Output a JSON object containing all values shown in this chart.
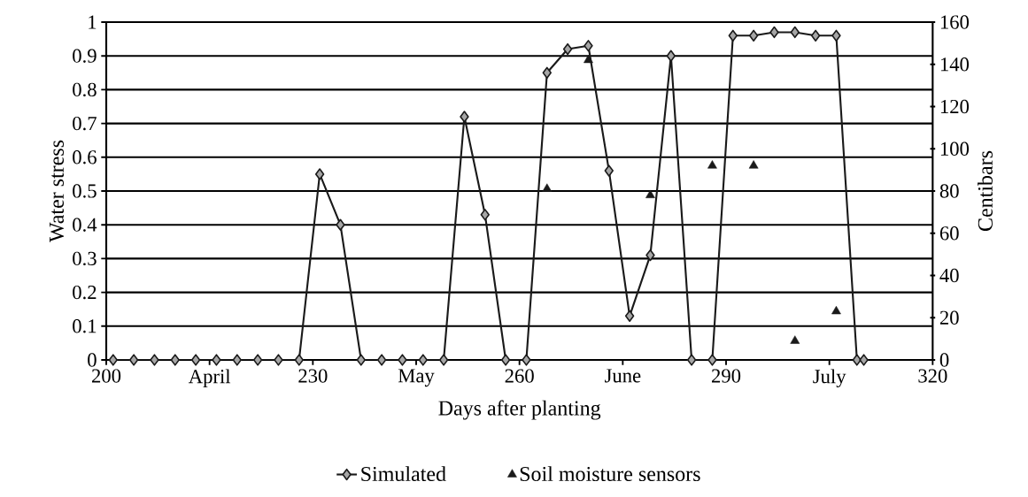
{
  "chart_data": {
    "type": "line",
    "xlabel": "Days after planting",
    "ylabel": "Water stress",
    "y2label": "Centibars",
    "xlim": [
      200,
      320
    ],
    "xticks": [
      200,
      {
        "value": 215,
        "label": "April"
      },
      230,
      {
        "value": 245,
        "label": "May"
      },
      260,
      {
        "value": 275,
        "label": "June"
      },
      290,
      {
        "value": 305,
        "label": "July"
      },
      320
    ],
    "ylim": [
      0,
      1
    ],
    "yticks": [
      0,
      0.1,
      0.2,
      0.3,
      0.4,
      0.5,
      0.6,
      0.7,
      0.8,
      0.9,
      1
    ],
    "y2lim": [
      0,
      160
    ],
    "y2ticks": [
      0,
      20,
      40,
      60,
      80,
      100,
      120,
      140,
      160
    ],
    "grid": "y",
    "legend": "bottom",
    "series": [
      {
        "name": "Simulated",
        "marker": "diamond",
        "line_style": "solid",
        "color": "#1a1a1a",
        "x": [
          201,
          204,
          207,
          210,
          213,
          216,
          219,
          222,
          225,
          228,
          231,
          234,
          237,
          240,
          243,
          246,
          249,
          252,
          255,
          258,
          261,
          264,
          267,
          270,
          273,
          276,
          279,
          282,
          285,
          288,
          291,
          294,
          297,
          300,
          303,
          306,
          309,
          310
        ],
        "values": [
          0,
          0,
          0,
          0,
          0,
          0,
          0,
          0,
          0,
          0,
          0.55,
          0.4,
          0,
          0,
          0,
          0,
          0,
          0.72,
          0.43,
          0,
          0,
          0.85,
          0.92,
          0.93,
          0.56,
          0.13,
          0.31,
          0.9,
          0,
          0,
          0.96,
          0.96,
          0.97,
          0.97,
          0.96,
          0.96,
          0,
          0
        ]
      },
      {
        "name": "Soil moisture sensors",
        "type": "scatter",
        "marker": "triangle",
        "axis": "y2",
        "color": "#1a1a1a",
        "x": [
          264,
          270,
          279,
          288,
          294,
          300,
          306
        ],
        "values": [
          81,
          142,
          78,
          92,
          92,
          9,
          23
        ]
      }
    ]
  }
}
